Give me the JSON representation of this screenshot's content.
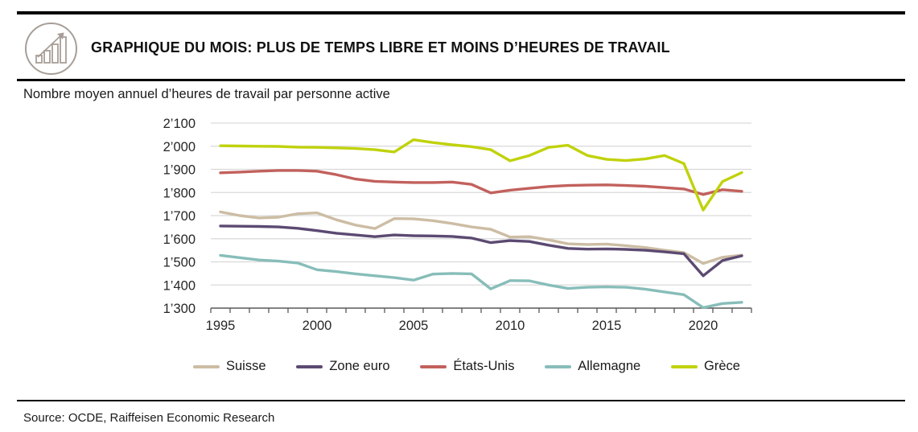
{
  "header": {
    "icon": "bar-chart-growth-icon",
    "title": "GRAPHIQUE DU MOIS: PLUS DE TEMPS LIBRE ET MOINS D’HEURES DE TRAVAIL"
  },
  "subtitle": "Nombre moyen annuel d’heures de travail par personne active",
  "source": "Source: OCDE, Raiffeisen Economic Research",
  "colors": {
    "grid": "#d9d9d9",
    "axis": "#595959",
    "icon": "#a79e97",
    "text": "#1a1a1a"
  },
  "chart_data": {
    "type": "line",
    "title": "Nombre moyen annuel d’heures de travail par personne active",
    "x": [
      1995,
      1996,
      1997,
      1998,
      1999,
      2000,
      2001,
      2002,
      2003,
      2004,
      2005,
      2006,
      2007,
      2008,
      2009,
      2010,
      2011,
      2012,
      2013,
      2014,
      2015,
      2016,
      2017,
      2018,
      2019,
      2020,
      2021,
      2022
    ],
    "series": [
      {
        "name": "Suisse",
        "color": "#ccbda4",
        "values": [
          1716,
          1700,
          1690,
          1693,
          1708,
          1712,
          1682,
          1659,
          1644,
          1687,
          1686,
          1678,
          1666,
          1651,
          1641,
          1607,
          1609,
          1595,
          1578,
          1575,
          1577,
          1570,
          1562,
          1550,
          1540,
          1493,
          1520,
          1529
        ]
      },
      {
        "name": "Zone euro",
        "color": "#5c4a72",
        "values": [
          1655,
          1654,
          1653,
          1651,
          1645,
          1635,
          1624,
          1616,
          1609,
          1616,
          1613,
          1612,
          1610,
          1603,
          1583,
          1592,
          1588,
          1572,
          1558,
          1555,
          1556,
          1554,
          1550,
          1543,
          1535,
          1440,
          1506,
          1526
        ]
      },
      {
        "name": "États-Unis",
        "color": "#c2615d",
        "values": [
          1885,
          1888,
          1892,
          1895,
          1895,
          1892,
          1877,
          1858,
          1848,
          1845,
          1843,
          1843,
          1845,
          1835,
          1798,
          1810,
          1818,
          1826,
          1830,
          1832,
          1833,
          1830,
          1827,
          1821,
          1815,
          1791,
          1812,
          1805
        ]
      },
      {
        "name": "Allemagne",
        "color": "#87bdb9",
        "values": [
          1528,
          1518,
          1508,
          1503,
          1495,
          1466,
          1458,
          1448,
          1440,
          1432,
          1421,
          1447,
          1450,
          1448,
          1383,
          1419,
          1418,
          1400,
          1385,
          1390,
          1392,
          1390,
          1382,
          1370,
          1358,
          1302,
          1320,
          1325
        ]
      },
      {
        "name": "Grèce",
        "color": "#c0d20c",
        "values": [
          2002,
          2001,
          2000,
          1999,
          1996,
          1995,
          1993,
          1990,
          1985,
          1975,
          2028,
          2016,
          2006,
          1998,
          1985,
          1937,
          1960,
          1995,
          2004,
          1960,
          1943,
          1938,
          1945,
          1960,
          1925,
          1724,
          1847,
          1886
        ]
      }
    ],
    "ylim": [
      1300,
      2100
    ],
    "ytick_step": 100,
    "ytick_format": "swiss-apostrophe",
    "xticks_labeled": [
      1995,
      2000,
      2005,
      2010,
      2015,
      2020
    ],
    "grid": "horizontal",
    "legend_position": "bottom"
  }
}
